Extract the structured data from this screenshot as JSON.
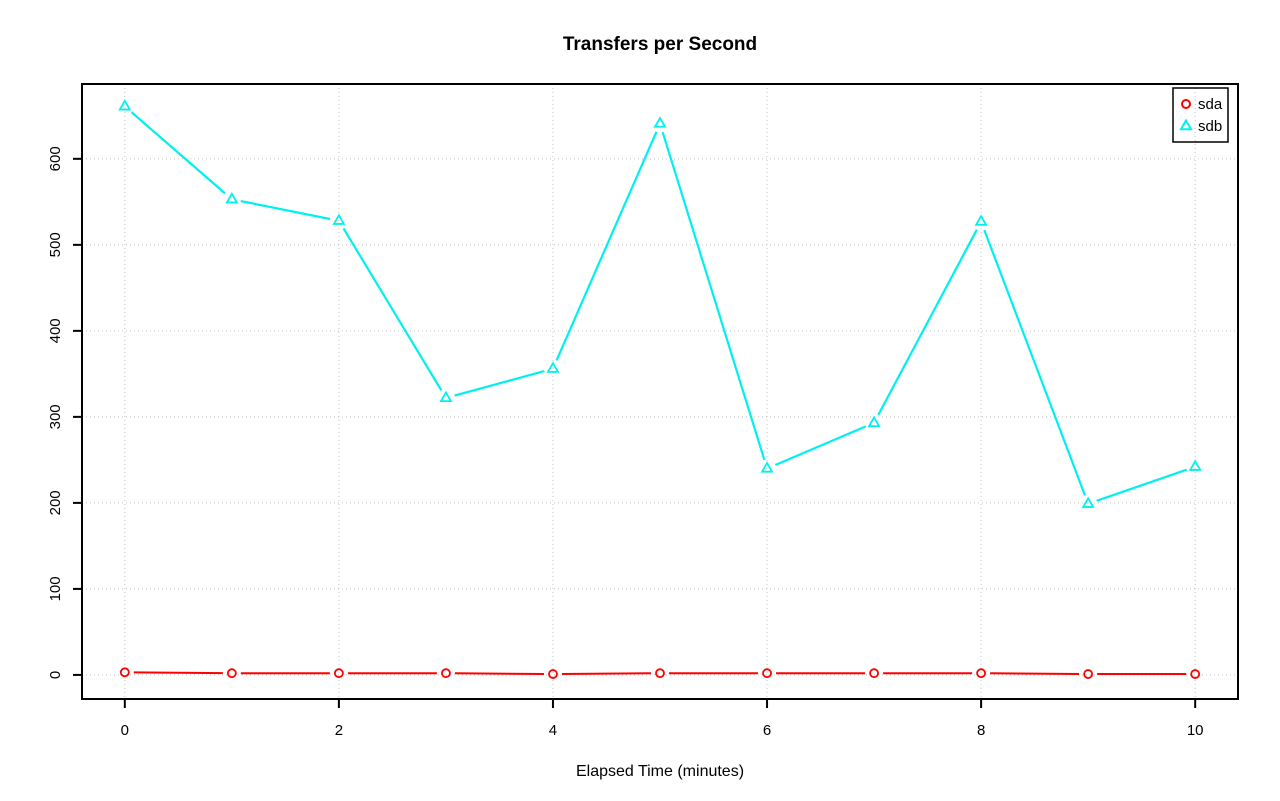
{
  "chart_data": {
    "type": "line",
    "title": "Transfers per Second",
    "xlabel": "Elapsed Time (minutes)",
    "ylabel": "",
    "x": [
      0,
      1,
      2,
      3,
      4,
      5,
      6,
      7,
      8,
      9,
      10
    ],
    "series": [
      {
        "name": "sda",
        "color": "#ff0000",
        "marker": "circle",
        "line_width": 2,
        "values": [
          3,
          2,
          2,
          2,
          1,
          2,
          2,
          2,
          2,
          1,
          1
        ]
      },
      {
        "name": "sdb",
        "color": "#00f0f0",
        "marker": "triangle",
        "line_width": 2.2,
        "values": [
          661,
          553,
          528,
          322,
          356,
          641,
          240,
          293,
          527,
          199,
          242
        ]
      }
    ],
    "xticks": [
      0,
      2,
      4,
      6,
      8,
      10
    ],
    "yticks": [
      0,
      100,
      200,
      300,
      400,
      500,
      600
    ],
    "xlim": [
      -0.4,
      10.4
    ],
    "ylim": [
      -28,
      687
    ],
    "grid": true,
    "grid_color": "#c4c4c4",
    "axis_color": "#000000",
    "legend": {
      "position": "top-right",
      "entries": [
        "sda",
        "sdb"
      ]
    }
  }
}
